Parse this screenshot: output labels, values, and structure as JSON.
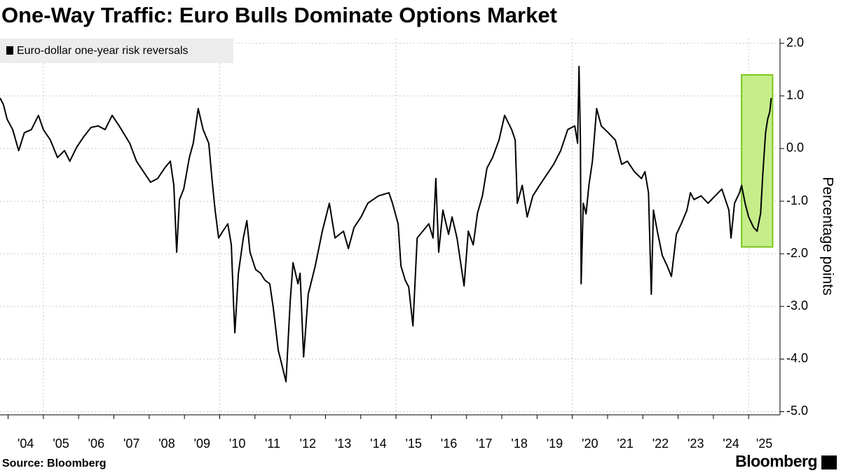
{
  "chart_data": {
    "type": "line",
    "title": "One-Way Traffic: Euro Bulls Dominate Options Market",
    "y_label": "Percentage points",
    "source": "Source: Bloomberg",
    "logo": "Bloomberg",
    "xlim": [
      2003.77,
      2025.89
    ],
    "ylim": [
      -5.06,
      2.09
    ],
    "xticks": [
      {
        "value": 2004,
        "label": "'04"
      },
      {
        "value": 2005,
        "label": "'05"
      },
      {
        "value": 2006,
        "label": "'06"
      },
      {
        "value": 2007,
        "label": "'07"
      },
      {
        "value": 2008,
        "label": "'08"
      },
      {
        "value": 2009,
        "label": "'09"
      },
      {
        "value": 2010,
        "label": "'10"
      },
      {
        "value": 2011,
        "label": "'11"
      },
      {
        "value": 2012,
        "label": "'12"
      },
      {
        "value": 2013,
        "label": "'13"
      },
      {
        "value": 2014,
        "label": "'14"
      },
      {
        "value": 2015,
        "label": "'15"
      },
      {
        "value": 2016,
        "label": "'16"
      },
      {
        "value": 2017,
        "label": "'17"
      },
      {
        "value": 2018,
        "label": "'18"
      },
      {
        "value": 2019,
        "label": "'19"
      },
      {
        "value": 2020,
        "label": "'20"
      },
      {
        "value": 2021,
        "label": "'21"
      },
      {
        "value": 2022,
        "label": "'22"
      },
      {
        "value": 2023,
        "label": "'23"
      },
      {
        "value": 2024,
        "label": "'24"
      },
      {
        "value": 2025,
        "label": "'25"
      }
    ],
    "xgrid_every": 5,
    "yticks": [
      {
        "value": 2,
        "label": "2.0"
      },
      {
        "value": 1,
        "label": "1.0"
      },
      {
        "value": 0,
        "label": "0.0"
      },
      {
        "value": -1,
        "label": "-1.0"
      },
      {
        "value": -2,
        "label": "-2.0"
      },
      {
        "value": -3,
        "label": "-3.0"
      },
      {
        "value": -4,
        "label": "-4.0"
      },
      {
        "value": -5,
        "label": "-5.0"
      }
    ],
    "grid": true,
    "legend": "top-left",
    "highlight": {
      "x": [
        2024.8,
        2025.68
      ],
      "y": [
        -1.87,
        1.4
      ],
      "color": "#c5ee8a",
      "edge": "#7cc41e"
    },
    "x": [
      2003.77,
      2003.87,
      2003.97,
      2004.13,
      2004.3,
      2004.46,
      2004.66,
      2004.86,
      2005.0,
      2005.2,
      2005.4,
      2005.6,
      2005.75,
      2005.95,
      2006.15,
      2006.35,
      2006.55,
      2006.75,
      2006.95,
      2007.15,
      2007.45,
      2007.64,
      2007.84,
      2008.04,
      2008.24,
      2008.44,
      2008.6,
      2008.7,
      2008.78,
      2008.86,
      2008.98,
      2009.14,
      2009.25,
      2009.39,
      2009.53,
      2009.69,
      2009.79,
      2009.87,
      2009.97,
      2010.09,
      2010.23,
      2010.33,
      2010.39,
      2010.43,
      2010.53,
      2010.67,
      2010.77,
      2010.86,
      2011.02,
      2011.16,
      2011.28,
      2011.42,
      2011.52,
      2011.66,
      2011.76,
      2011.88,
      2012.0,
      2012.08,
      2012.22,
      2012.28,
      2012.38,
      2012.51,
      2012.71,
      2012.91,
      2013.11,
      2013.27,
      2013.51,
      2013.65,
      2013.81,
      2014.01,
      2014.2,
      2014.5,
      2014.8,
      2014.9,
      2015.06,
      2015.14,
      2015.26,
      2015.36,
      2015.48,
      2015.6,
      2015.76,
      2015.93,
      2016.05,
      2016.13,
      2016.21,
      2016.33,
      2016.49,
      2016.59,
      2016.73,
      2016.93,
      2017.05,
      2017.19,
      2017.31,
      2017.45,
      2017.58,
      2017.74,
      2017.92,
      2018.08,
      2018.28,
      2018.38,
      2018.44,
      2018.58,
      2018.72,
      2018.88,
      2019.07,
      2019.27,
      2019.47,
      2019.67,
      2019.87,
      2020.07,
      2020.15,
      2020.19,
      2020.23,
      2020.25,
      2020.31,
      2020.39,
      2020.47,
      2020.57,
      2020.69,
      2020.82,
      2021.02,
      2021.22,
      2021.4,
      2021.56,
      2021.76,
      2021.96,
      2022.06,
      2022.16,
      2022.24,
      2022.3,
      2022.41,
      2022.55,
      2022.69,
      2022.81,
      2022.95,
      2023.09,
      2023.25,
      2023.35,
      2023.45,
      2023.65,
      2023.85,
      2024.05,
      2024.24,
      2024.44,
      2024.5,
      2024.6,
      2024.74,
      2024.8,
      2024.9,
      2025.0,
      2025.14,
      2025.24,
      2025.34,
      2025.4,
      2025.48,
      2025.54,
      2025.6,
      2025.64
    ],
    "series": [
      {
        "name": "Euro-dollar one-year risk reversals",
        "color": "#000000",
        "values": [
          0.96,
          0.83,
          0.56,
          0.36,
          -0.04,
          0.3,
          0.36,
          0.63,
          0.36,
          0.16,
          -0.17,
          -0.04,
          -0.24,
          0.03,
          0.23,
          0.4,
          0.43,
          0.36,
          0.63,
          0.43,
          0.1,
          -0.24,
          -0.44,
          -0.64,
          -0.57,
          -0.37,
          -0.24,
          -0.7,
          -1.97,
          -0.97,
          -0.77,
          -0.17,
          0.1,
          0.76,
          0.36,
          0.1,
          -0.64,
          -1.17,
          -1.7,
          -1.57,
          -1.43,
          -1.83,
          -2.9,
          -3.5,
          -2.37,
          -1.7,
          -1.37,
          -1.97,
          -2.3,
          -2.37,
          -2.5,
          -2.57,
          -3.03,
          -3.83,
          -4.1,
          -4.43,
          -2.9,
          -2.17,
          -2.57,
          -2.37,
          -3.96,
          -2.77,
          -2.23,
          -1.57,
          -1.04,
          -1.7,
          -1.57,
          -1.9,
          -1.5,
          -1.3,
          -1.04,
          -0.9,
          -0.84,
          -1.04,
          -1.43,
          -2.23,
          -2.5,
          -2.63,
          -3.37,
          -1.7,
          -1.57,
          -1.43,
          -1.7,
          -0.57,
          -1.97,
          -1.17,
          -1.63,
          -1.3,
          -1.7,
          -2.61,
          -1.57,
          -1.83,
          -1.23,
          -0.9,
          -0.37,
          -0.17,
          0.16,
          0.63,
          0.36,
          0.16,
          -1.04,
          -0.7,
          -1.3,
          -0.9,
          -0.7,
          -0.5,
          -0.3,
          -0.04,
          0.36,
          0.43,
          0.1,
          1.56,
          0.16,
          -2.57,
          -1.04,
          -1.24,
          -0.7,
          -0.24,
          0.76,
          0.43,
          0.3,
          0.16,
          -0.3,
          -0.24,
          -0.44,
          -0.57,
          -0.44,
          -0.84,
          -2.77,
          -1.17,
          -1.57,
          -2.03,
          -2.23,
          -2.43,
          -1.63,
          -1.43,
          -1.17,
          -0.84,
          -0.97,
          -0.9,
          -1.04,
          -0.9,
          -0.77,
          -1.17,
          -1.7,
          -1.04,
          -0.84,
          -0.7,
          -1.04,
          -1.3,
          -1.5,
          -1.57,
          -1.23,
          -0.5,
          0.3,
          0.56,
          0.7,
          0.96
        ]
      }
    ]
  }
}
